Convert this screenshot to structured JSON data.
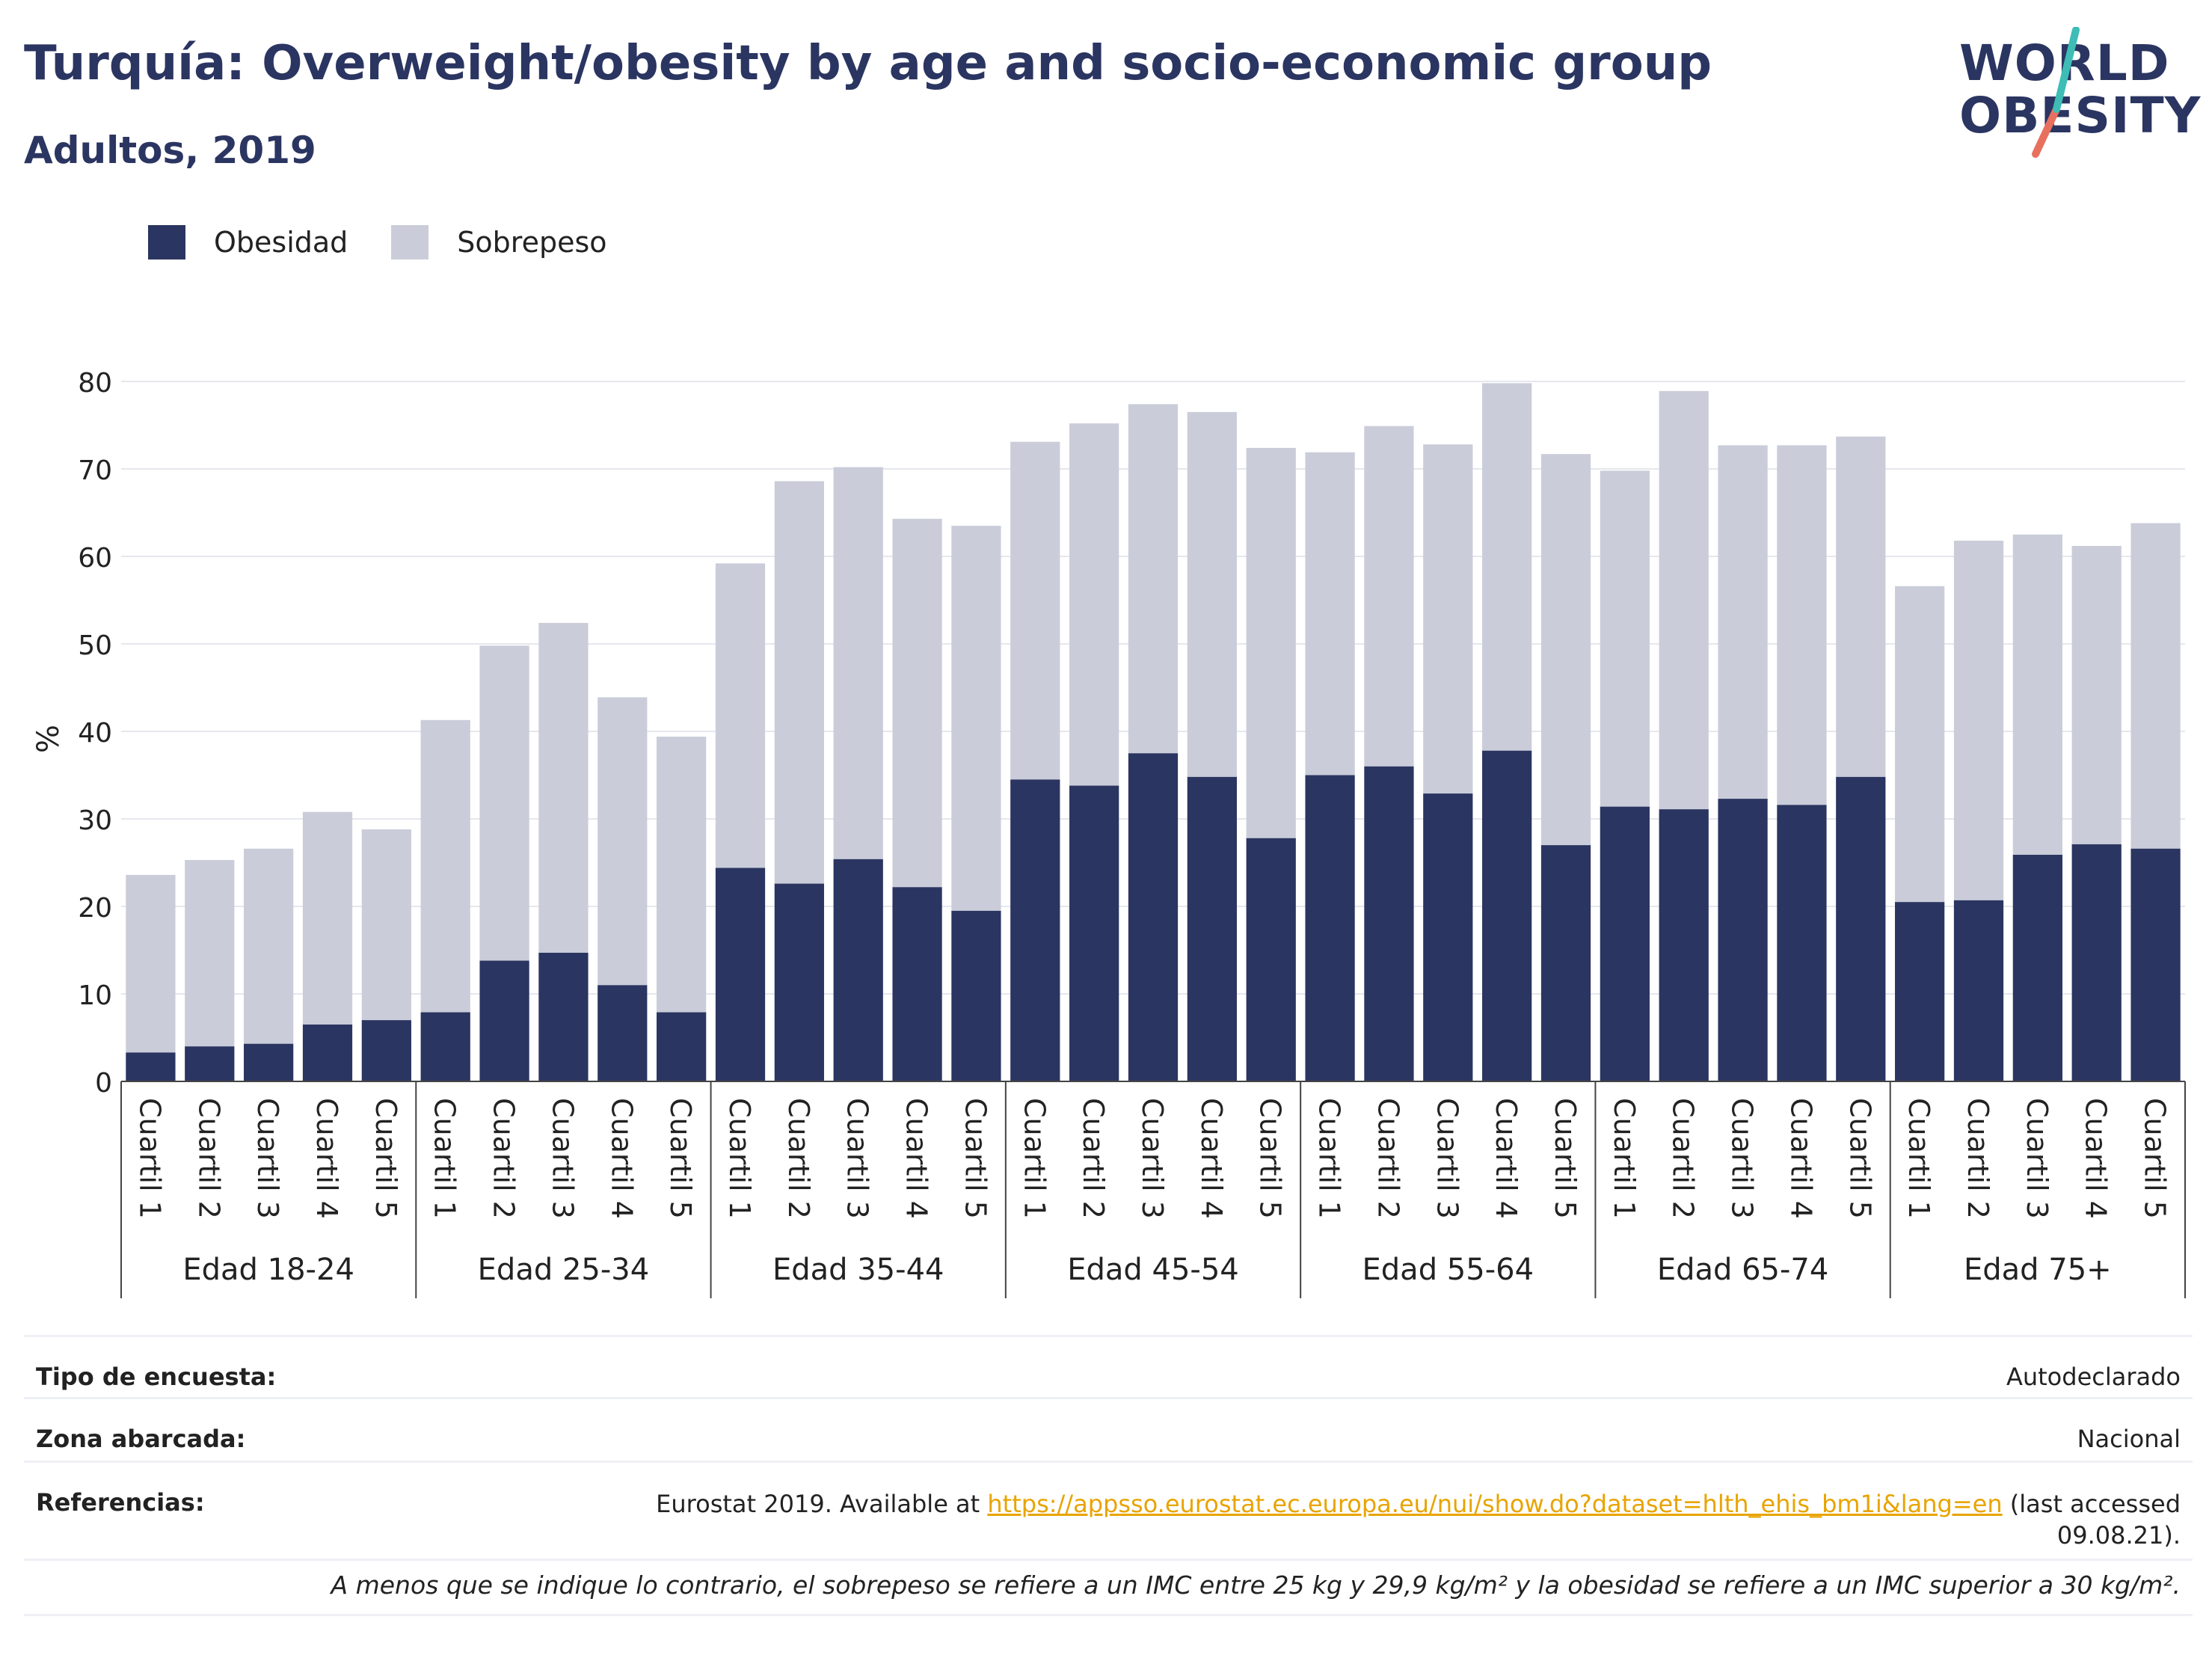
{
  "title": "Turquía: Overweight/obesity by age and socio-economic group",
  "subtitle": "Adultos, 2019",
  "logo": {
    "line1": "WORLD",
    "line2": "OBESITY"
  },
  "colors": {
    "obesity": "#2b3561",
    "overweight": "#cacdd9",
    "text": "#2b3561",
    "grid": "#e6e7ee",
    "link": "#e8a400"
  },
  "chart_data": {
    "type": "bar",
    "stacked": true,
    "ylabel": "%",
    "ylim": [
      0,
      80
    ],
    "yticks": [
      0,
      10,
      20,
      30,
      40,
      50,
      60,
      70,
      80
    ],
    "grid": true,
    "legend_position": "top-left",
    "groups": [
      "Edad 18-24",
      "Edad 25-34",
      "Edad 35-44",
      "Edad 45-54",
      "Edad 55-64",
      "Edad 65-74",
      "Edad 75+"
    ],
    "categories": [
      "Cuartil 1",
      "Cuartil 2",
      "Cuartil 3",
      "Cuartil 4",
      "Cuartil 5"
    ],
    "series": [
      {
        "name": "Obesidad",
        "values": [
          [
            3.3,
            4.0,
            4.3,
            6.5,
            7.0
          ],
          [
            7.9,
            13.8,
            14.7,
            11.0,
            7.9
          ],
          [
            24.4,
            22.6,
            25.4,
            22.2,
            19.5
          ],
          [
            34.5,
            33.8,
            37.5,
            34.8,
            27.8
          ],
          [
            35.0,
            36.0,
            32.9,
            37.8,
            27.0
          ],
          [
            31.4,
            31.1,
            32.3,
            31.6,
            34.8
          ],
          [
            20.5,
            20.7,
            25.9,
            27.1,
            26.6
          ]
        ]
      },
      {
        "name": "Sobrepeso",
        "values": [
          [
            20.3,
            21.3,
            22.3,
            24.3,
            21.8
          ],
          [
            33.4,
            36.0,
            37.7,
            32.9,
            31.5
          ],
          [
            34.8,
            46.0,
            44.8,
            42.1,
            44.0
          ],
          [
            38.6,
            41.4,
            39.9,
            41.7,
            44.6
          ],
          [
            36.9,
            38.9,
            39.9,
            42.0,
            44.7
          ],
          [
            38.4,
            47.8,
            40.4,
            41.1,
            38.9
          ],
          [
            36.1,
            41.1,
            36.6,
            34.1,
            37.2
          ]
        ]
      }
    ]
  },
  "meta": {
    "survey_label": "Tipo de encuesta:",
    "survey_value": "Autodeclarado",
    "area_label": "Zona abarcada:",
    "area_value": "Nacional",
    "refs_label": "Referencias:",
    "refs_prefix": "Eurostat 2019. Available at",
    "refs_link": "https://appsso.eurostat.ec.europa.eu/nui/show.do?dataset=hlth_ehis_bm1i&lang=en",
    "refs_suffix_1": "(last accessed",
    "refs_suffix_2": "09.08.21)."
  },
  "note": "A menos que se indique lo contrario, el sobrepeso se refiere a un IMC entre 25 kg y 29,9 kg/m² y la obesidad se refiere a un IMC superior a 30 kg/m²."
}
